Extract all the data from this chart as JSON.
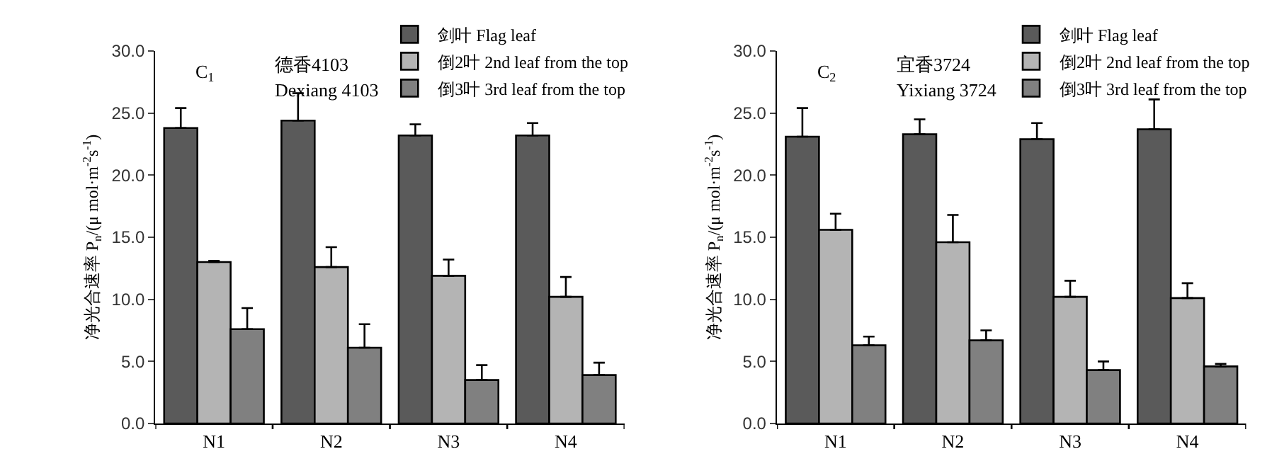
{
  "chart_data": [
    {
      "type": "bar",
      "ylabel": "净光合速率 P$_{n}$/(μ mol·m$^{-2}$s$^{-1}$)",
      "annotations": [
        "C$_{1}$",
        "德香4103",
        "Dexiang 4103"
      ],
      "categories": [
        "N1",
        "N2",
        "N3",
        "N4"
      ],
      "legend": "top right",
      "ylim": [
        0,
        30
      ],
      "yticks": [
        {
          "value": 0,
          "label": "0.0"
        },
        {
          "value": 5,
          "label": "5.0"
        },
        {
          "value": 10,
          "label": "10.0"
        },
        {
          "value": 15,
          "label": "15.0"
        },
        {
          "value": 20,
          "label": "20.0"
        },
        {
          "value": 25,
          "label": "25.0"
        },
        {
          "value": 30,
          "label": "30.0"
        }
      ],
      "series": [
        {
          "name": "剑叶 Flag leaf",
          "color": "#5a5a5a",
          "values": [
            23.8,
            24.4,
            23.2,
            23.2
          ],
          "errors": [
            [
              23.8,
              25.4
            ],
            [
              24.4,
              26.6
            ],
            [
              23.2,
              24.1
            ],
            [
              23.2,
              24.2
            ]
          ]
        },
        {
          "name": "倒2叶 2nd leaf from the top",
          "color": "#b4b4b4",
          "values": [
            13.0,
            12.6,
            11.9,
            10.2
          ],
          "errors": [
            [
              13.0,
              13.1
            ],
            [
              12.6,
              14.2
            ],
            [
              11.9,
              13.2
            ],
            [
              10.2,
              11.8
            ]
          ]
        },
        {
          "name": "倒3叶 3rd leaf from the top",
          "color": "#808080",
          "values": [
            7.6,
            6.1,
            3.5,
            3.9
          ],
          "errors": [
            [
              7.6,
              9.3
            ],
            [
              6.1,
              8.0
            ],
            [
              3.5,
              4.7
            ],
            [
              3.9,
              4.9
            ]
          ]
        }
      ]
    },
    {
      "type": "bar",
      "ylabel": "净光合速率 P$_{n}$/(μ mol·m$^{-2}$s$^{-1}$)",
      "annotations": [
        "C$_{2}$",
        "宜香3724",
        "Yixiang 3724"
      ],
      "categories": [
        "N1",
        "N2",
        "N3",
        "N4"
      ],
      "legend": "top right",
      "ylim": [
        0,
        30
      ],
      "yticks": [
        {
          "value": 0,
          "label": "0.0"
        },
        {
          "value": 5,
          "label": "5.0"
        },
        {
          "value": 10,
          "label": "10.0"
        },
        {
          "value": 15,
          "label": "15.0"
        },
        {
          "value": 20,
          "label": "20.0"
        },
        {
          "value": 25,
          "label": "25.0"
        },
        {
          "value": 30,
          "label": "30.0"
        }
      ],
      "series": [
        {
          "name": "剑叶 Flag leaf",
          "color": "#5a5a5a",
          "values": [
            23.1,
            23.3,
            22.9,
            23.7
          ],
          "errors": [
            [
              23.1,
              25.4
            ],
            [
              23.3,
              24.5
            ],
            [
              22.9,
              24.2
            ],
            [
              23.7,
              26.1
            ]
          ]
        },
        {
          "name": "倒2叶 2nd leaf from the top",
          "color": "#b4b4b4",
          "values": [
            15.6,
            14.6,
            10.2,
            10.1
          ],
          "errors": [
            [
              15.6,
              16.9
            ],
            [
              14.6,
              16.8
            ],
            [
              10.2,
              11.5
            ],
            [
              10.1,
              11.3
            ]
          ]
        },
        {
          "name": "倒3叶 3rd leaf from the top",
          "color": "#808080",
          "values": [
            6.3,
            6.7,
            4.3,
            4.6
          ],
          "errors": [
            [
              6.3,
              7.0
            ],
            [
              6.7,
              7.5
            ],
            [
              4.3,
              5.0
            ],
            [
              4.6,
              4.8
            ]
          ]
        }
      ]
    }
  ]
}
